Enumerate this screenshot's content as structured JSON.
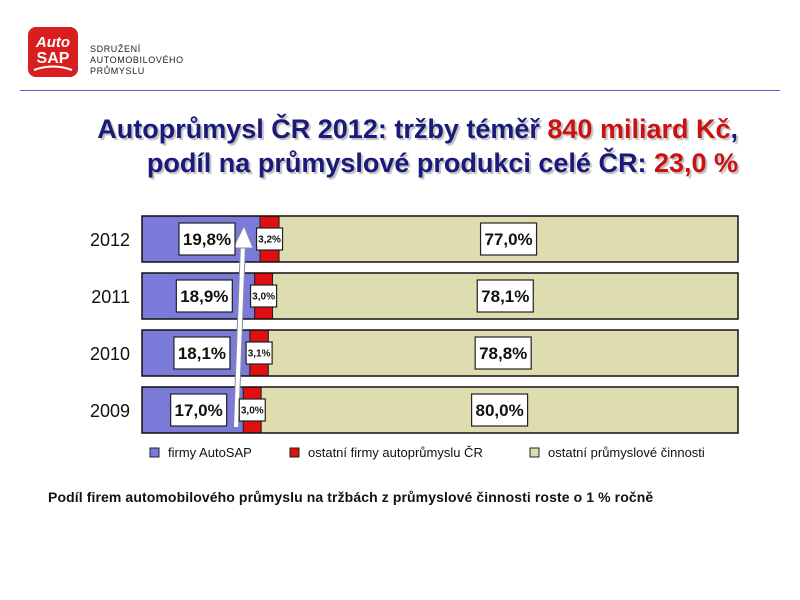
{
  "logo": {
    "line1": "Auto",
    "line2": "SAP",
    "bg_color": "#d81e1e"
  },
  "org": {
    "line1": "SDRUŽENÍ",
    "line2": "AUTOMOBILOVÉHO",
    "line3": "PRŮMYSLU"
  },
  "title": {
    "line1_part1": "Autoprůmysl ČR 2012: tržby téměř ",
    "line1_highlight": "840 miliard Kč",
    "line1_part2": ",",
    "line2_part1": "podíl na průmyslové produkci celé ČR: ",
    "line2_highlight": "23,0 %"
  },
  "chart_data": {
    "type": "bar",
    "orientation": "horizontal",
    "stacked": true,
    "percent_stacked": true,
    "categories": [
      "2012",
      "2011",
      "2010",
      "2009"
    ],
    "series": [
      {
        "name": "firmy AutoSAP",
        "values": [
          19.8,
          18.9,
          18.1,
          17.0
        ],
        "labels": [
          "19,8%",
          "18,9%",
          "18,1%",
          "17,0%"
        ],
        "color": "#7a7ad8"
      },
      {
        "name": "ostatní firmy autoprůmyslu ČR",
        "values": [
          3.2,
          3.0,
          3.1,
          3.0
        ],
        "labels": [
          "3,2%",
          "3,0%",
          "3,1%",
          "3,0%"
        ],
        "color": "#e01010"
      },
      {
        "name": "ostatní průmyslové činnosti",
        "values": [
          77.0,
          78.1,
          78.8,
          80.0
        ],
        "labels": [
          "77,0%",
          "78,1%",
          "78,8%",
          "80,0%"
        ],
        "color": "#ddddb0"
      }
    ],
    "xlim": [
      0,
      100
    ],
    "legend_position": "bottom",
    "grid": false,
    "annotation": "upward arrow across years"
  },
  "caption": "Podíl firem automobilového průmyslu na tržbách z průmyslové činnosti roste o 1 % ročně"
}
